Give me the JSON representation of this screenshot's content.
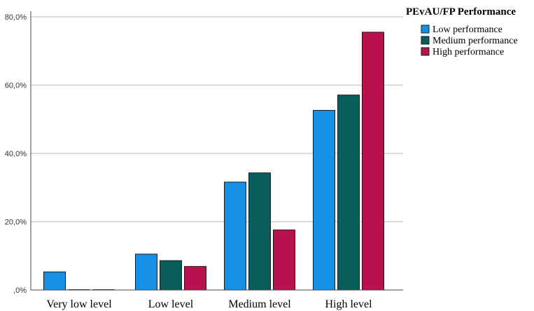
{
  "chart_data": {
    "type": "bar",
    "categories": [
      "Very low level",
      "Low level",
      "Medium level",
      "High level"
    ],
    "series": [
      {
        "name": "Low performance",
        "values": [
          5.3,
          10.5,
          31.6,
          52.6
        ],
        "color": "#1590e6"
      },
      {
        "name": "Medium performance",
        "values": [
          0.0,
          8.6,
          34.3,
          57.1
        ],
        "color": "#075e5a"
      },
      {
        "name": "High performance",
        "values": [
          0.0,
          6.9,
          17.6,
          75.5
        ],
        "color": "#b8114e"
      }
    ],
    "legend_title": "PEvAU/FP Performance",
    "legend_position": "top-right",
    "ylim": [
      0,
      80
    ],
    "yticks": [
      {
        "value": 0,
        "label": ",0%"
      },
      {
        "value": 20,
        "label": "20,0%"
      },
      {
        "value": 40,
        "label": "40,0%"
      },
      {
        "value": 60,
        "label": "60,0%"
      },
      {
        "value": 80,
        "label": "80,0%"
      }
    ],
    "grid": true,
    "title": "",
    "xlabel": "",
    "ylabel": ""
  }
}
